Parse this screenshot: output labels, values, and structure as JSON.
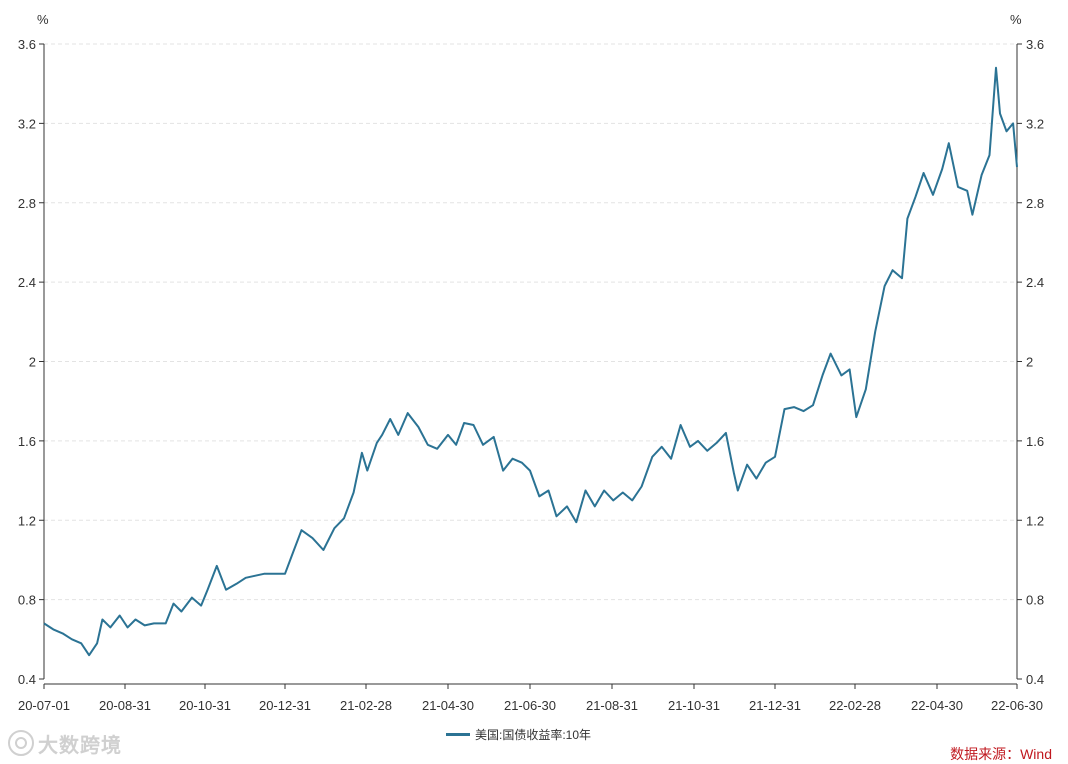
{
  "chart_data": {
    "type": "line",
    "unit_left": "%",
    "unit_right": "%",
    "x_tick_labels": [
      "20-07-01",
      "20-08-31",
      "20-10-31",
      "20-12-31",
      "21-02-28",
      "21-04-30",
      "21-06-30",
      "21-08-31",
      "21-10-31",
      "21-12-31",
      "22-02-28",
      "22-04-30",
      "22-06-30"
    ],
    "y_tick_labels": [
      "0.4",
      "0.8",
      "1.2",
      "1.6",
      "2",
      "2.4",
      "2.8",
      "3.2",
      "3.6"
    ],
    "ylim": [
      0.4,
      3.6
    ],
    "xlim": [
      "2020-07-01",
      "2022-06-30"
    ],
    "grid": "horizontal dashed",
    "legend_position": "bottom-center",
    "series": [
      {
        "name": "美国:国债收益率:10年",
        "color": "#2b7394",
        "points": [
          [
            "2020-07-01",
            0.68
          ],
          [
            "2020-07-08",
            0.65
          ],
          [
            "2020-07-15",
            0.63
          ],
          [
            "2020-07-22",
            0.6
          ],
          [
            "2020-07-29",
            0.58
          ],
          [
            "2020-08-04",
            0.52
          ],
          [
            "2020-08-10",
            0.58
          ],
          [
            "2020-08-14",
            0.7
          ],
          [
            "2020-08-20",
            0.66
          ],
          [
            "2020-08-27",
            0.72
          ],
          [
            "2020-09-02",
            0.66
          ],
          [
            "2020-09-08",
            0.7
          ],
          [
            "2020-09-15",
            0.67
          ],
          [
            "2020-09-22",
            0.68
          ],
          [
            "2020-10-01",
            0.68
          ],
          [
            "2020-10-07",
            0.78
          ],
          [
            "2020-10-13",
            0.74
          ],
          [
            "2020-10-21",
            0.81
          ],
          [
            "2020-10-28",
            0.77
          ],
          [
            "2020-11-02",
            0.85
          ],
          [
            "2020-11-09",
            0.97
          ],
          [
            "2020-11-16",
            0.85
          ],
          [
            "2020-11-24",
            0.88
          ],
          [
            "2020-12-01",
            0.91
          ],
          [
            "2020-12-08",
            0.92
          ],
          [
            "2020-12-15",
            0.93
          ],
          [
            "2020-12-22",
            0.93
          ],
          [
            "2020-12-31",
            0.93
          ],
          [
            "2021-01-06",
            1.04
          ],
          [
            "2021-01-12",
            1.15
          ],
          [
            "2021-01-20",
            1.11
          ],
          [
            "2021-01-28",
            1.05
          ],
          [
            "2021-02-05",
            1.16
          ],
          [
            "2021-02-12",
            1.21
          ],
          [
            "2021-02-19",
            1.34
          ],
          [
            "2021-02-25",
            1.54
          ],
          [
            "2021-03-01",
            1.45
          ],
          [
            "2021-03-08",
            1.59
          ],
          [
            "2021-03-12",
            1.63
          ],
          [
            "2021-03-18",
            1.71
          ],
          [
            "2021-03-24",
            1.63
          ],
          [
            "2021-03-31",
            1.74
          ],
          [
            "2021-04-08",
            1.67
          ],
          [
            "2021-04-15",
            1.58
          ],
          [
            "2021-04-22",
            1.56
          ],
          [
            "2021-04-30",
            1.63
          ],
          [
            "2021-05-06",
            1.58
          ],
          [
            "2021-05-12",
            1.69
          ],
          [
            "2021-05-19",
            1.68
          ],
          [
            "2021-05-26",
            1.58
          ],
          [
            "2021-06-03",
            1.62
          ],
          [
            "2021-06-10",
            1.45
          ],
          [
            "2021-06-17",
            1.51
          ],
          [
            "2021-06-24",
            1.49
          ],
          [
            "2021-06-30",
            1.45
          ],
          [
            "2021-07-07",
            1.32
          ],
          [
            "2021-07-14",
            1.35
          ],
          [
            "2021-07-20",
            1.22
          ],
          [
            "2021-07-28",
            1.27
          ],
          [
            "2021-08-04",
            1.19
          ],
          [
            "2021-08-11",
            1.35
          ],
          [
            "2021-08-18",
            1.27
          ],
          [
            "2021-08-25",
            1.35
          ],
          [
            "2021-09-01",
            1.3
          ],
          [
            "2021-09-08",
            1.34
          ],
          [
            "2021-09-15",
            1.3
          ],
          [
            "2021-09-22",
            1.37
          ],
          [
            "2021-09-30",
            1.52
          ],
          [
            "2021-10-07",
            1.57
          ],
          [
            "2021-10-14",
            1.51
          ],
          [
            "2021-10-21",
            1.68
          ],
          [
            "2021-10-28",
            1.57
          ],
          [
            "2021-11-03",
            1.6
          ],
          [
            "2021-11-10",
            1.55
          ],
          [
            "2021-11-17",
            1.59
          ],
          [
            "2021-11-24",
            1.64
          ],
          [
            "2021-11-30",
            1.44
          ],
          [
            "2021-12-03",
            1.35
          ],
          [
            "2021-12-10",
            1.48
          ],
          [
            "2021-12-17",
            1.41
          ],
          [
            "2021-12-24",
            1.49
          ],
          [
            "2021-12-31",
            1.52
          ],
          [
            "2022-01-07",
            1.76
          ],
          [
            "2022-01-14",
            1.77
          ],
          [
            "2022-01-21",
            1.75
          ],
          [
            "2022-01-28",
            1.78
          ],
          [
            "2022-02-04",
            1.93
          ],
          [
            "2022-02-10",
            2.04
          ],
          [
            "2022-02-18",
            1.93
          ],
          [
            "2022-02-24",
            1.96
          ],
          [
            "2022-03-01",
            1.72
          ],
          [
            "2022-03-08",
            1.86
          ],
          [
            "2022-03-15",
            2.15
          ],
          [
            "2022-03-22",
            2.38
          ],
          [
            "2022-03-28",
            2.46
          ],
          [
            "2022-04-04",
            2.42
          ],
          [
            "2022-04-08",
            2.72
          ],
          [
            "2022-04-14",
            2.83
          ],
          [
            "2022-04-20",
            2.95
          ],
          [
            "2022-04-27",
            2.84
          ],
          [
            "2022-05-04",
            2.97
          ],
          [
            "2022-05-09",
            3.1
          ],
          [
            "2022-05-16",
            2.88
          ],
          [
            "2022-05-23",
            2.86
          ],
          [
            "2022-05-27",
            2.74
          ],
          [
            "2022-06-03",
            2.94
          ],
          [
            "2022-06-09",
            3.04
          ],
          [
            "2022-06-14",
            3.48
          ],
          [
            "2022-06-17",
            3.25
          ],
          [
            "2022-06-22",
            3.16
          ],
          [
            "2022-06-27",
            3.2
          ],
          [
            "2022-06-30",
            2.98
          ]
        ]
      }
    ]
  },
  "source_label": "数据来源：Wind",
  "source_color": "#c0181f",
  "watermark_text": "大数跨境"
}
